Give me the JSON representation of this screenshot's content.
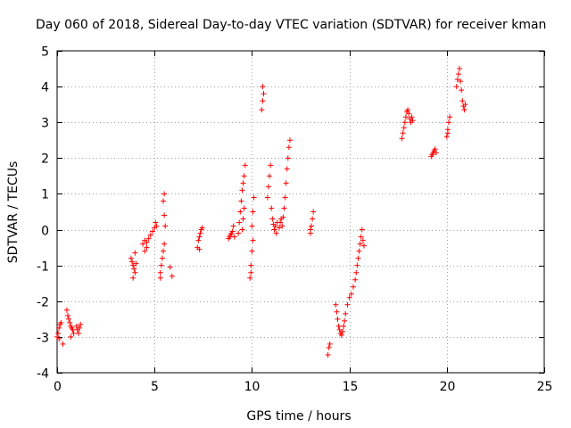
{
  "chart_data": {
    "type": "scatter",
    "title": "Day 060 of 2018, Sidereal Day-to-day VTEC variation (SDTVAR) for receiver kman",
    "xlabel": "GPS time / hours",
    "ylabel": "SDTVAR / TECUs",
    "xlim": [
      0,
      25
    ],
    "ylim": [
      -4,
      5
    ],
    "xticks": [
      0,
      5,
      10,
      15,
      20,
      25
    ],
    "xtick_labels": [
      "0",
      "5",
      "10",
      "15",
      "20",
      "25"
    ],
    "yticks": [
      -4,
      -3,
      -2,
      -1,
      0,
      1,
      2,
      3,
      4,
      5
    ],
    "ytick_labels": [
      "-4",
      "-3",
      "-2",
      "-1",
      "0",
      "1",
      "2",
      "3",
      "4",
      "5"
    ],
    "grid": true,
    "marker": "+",
    "series": [
      {
        "name": "SDTVAR",
        "color": "#ff0000",
        "points": [
          [
            0.0,
            -3.0
          ],
          [
            0.05,
            -2.9
          ],
          [
            0.1,
            -2.75
          ],
          [
            0.15,
            -2.65
          ],
          [
            0.2,
            -2.6
          ],
          [
            0.1,
            -3.05
          ],
          [
            0.3,
            -3.2
          ],
          [
            0.5,
            -2.25
          ],
          [
            0.55,
            -2.4
          ],
          [
            0.6,
            -2.5
          ],
          [
            0.65,
            -2.6
          ],
          [
            0.7,
            -2.7
          ],
          [
            0.75,
            -2.75
          ],
          [
            0.8,
            -2.8
          ],
          [
            0.85,
            -2.9
          ],
          [
            0.7,
            -3.0
          ],
          [
            1.0,
            -2.7
          ],
          [
            1.05,
            -2.8
          ],
          [
            1.1,
            -2.9
          ],
          [
            1.15,
            -2.75
          ],
          [
            1.2,
            -2.65
          ],
          [
            3.8,
            -0.8
          ],
          [
            3.85,
            -0.9
          ],
          [
            3.9,
            -1.0
          ],
          [
            3.95,
            -1.1
          ],
          [
            4.0,
            -1.2
          ],
          [
            3.9,
            -1.35
          ],
          [
            4.05,
            -0.95
          ],
          [
            4.0,
            -0.65
          ],
          [
            4.4,
            -0.4
          ],
          [
            4.5,
            -0.3
          ],
          [
            4.6,
            -0.35
          ],
          [
            4.7,
            -0.25
          ],
          [
            4.8,
            -0.15
          ],
          [
            4.9,
            -0.05
          ],
          [
            5.0,
            0.05
          ],
          [
            5.05,
            0.2
          ],
          [
            5.1,
            0.1
          ],
          [
            4.6,
            -0.5
          ],
          [
            4.5,
            -0.6
          ],
          [
            5.3,
            -1.2
          ],
          [
            5.35,
            -1.0
          ],
          [
            5.4,
            -0.8
          ],
          [
            5.45,
            -0.6
          ],
          [
            5.5,
            -0.4
          ],
          [
            5.55,
            0.1
          ],
          [
            5.5,
            0.4
          ],
          [
            5.45,
            0.8
          ],
          [
            5.5,
            1.0
          ],
          [
            5.3,
            -1.35
          ],
          [
            5.9,
            -1.3
          ],
          [
            5.8,
            -1.05
          ],
          [
            7.2,
            -0.5
          ],
          [
            7.25,
            -0.3
          ],
          [
            7.3,
            -0.2
          ],
          [
            7.35,
            -0.1
          ],
          [
            7.4,
            0.0
          ],
          [
            7.45,
            0.05
          ],
          [
            7.3,
            -0.55
          ],
          [
            8.8,
            -0.25
          ],
          [
            8.85,
            -0.2
          ],
          [
            8.9,
            -0.15
          ],
          [
            8.95,
            -0.1
          ],
          [
            9.0,
            -0.05
          ],
          [
            9.05,
            0.1
          ],
          [
            9.1,
            -0.2
          ],
          [
            9.3,
            -0.1
          ],
          [
            9.35,
            0.2
          ],
          [
            9.4,
            0.5
          ],
          [
            9.45,
            0.8
          ],
          [
            9.5,
            1.1
          ],
          [
            9.55,
            1.3
          ],
          [
            9.6,
            1.5
          ],
          [
            9.65,
            1.8
          ],
          [
            9.5,
            0.0
          ],
          [
            9.6,
            0.6
          ],
          [
            9.55,
            0.3
          ],
          [
            9.9,
            -1.35
          ],
          [
            9.95,
            -1.0
          ],
          [
            10.0,
            -0.6
          ],
          [
            10.05,
            -0.3
          ],
          [
            10.0,
            0.1
          ],
          [
            10.05,
            0.5
          ],
          [
            10.1,
            0.9
          ],
          [
            9.95,
            -1.2
          ],
          [
            10.5,
            3.35
          ],
          [
            10.55,
            3.6
          ],
          [
            10.6,
            3.8
          ],
          [
            10.55,
            4.0
          ],
          [
            10.8,
            0.9
          ],
          [
            10.85,
            1.2
          ],
          [
            10.9,
            1.5
          ],
          [
            10.95,
            1.8
          ],
          [
            11.0,
            0.6
          ],
          [
            11.05,
            0.3
          ],
          [
            11.1,
            0.15
          ],
          [
            11.15,
            0.0
          ],
          [
            11.2,
            0.1
          ],
          [
            11.25,
            -0.1
          ],
          [
            11.3,
            0.2
          ],
          [
            11.4,
            0.05
          ],
          [
            11.45,
            0.2
          ],
          [
            11.5,
            0.3
          ],
          [
            11.55,
            0.1
          ],
          [
            11.6,
            0.35
          ],
          [
            11.65,
            0.6
          ],
          [
            11.7,
            0.9
          ],
          [
            11.75,
            1.3
          ],
          [
            11.8,
            1.7
          ],
          [
            11.85,
            2.0
          ],
          [
            11.9,
            2.3
          ],
          [
            11.95,
            2.5
          ],
          [
            13.0,
            -0.1
          ],
          [
            13.05,
            0.1
          ],
          [
            13.1,
            0.3
          ],
          [
            13.15,
            0.5
          ],
          [
            13.0,
            0.0
          ],
          [
            13.9,
            -3.5
          ],
          [
            13.95,
            -3.3
          ],
          [
            14.0,
            -3.2
          ],
          [
            14.3,
            -2.1
          ],
          [
            14.35,
            -2.3
          ],
          [
            14.4,
            -2.5
          ],
          [
            14.45,
            -2.7
          ],
          [
            14.5,
            -2.8
          ],
          [
            14.55,
            -2.9
          ],
          [
            14.6,
            -2.95
          ],
          [
            14.65,
            -2.85
          ],
          [
            14.7,
            -2.7
          ],
          [
            14.75,
            -2.55
          ],
          [
            14.8,
            -2.35
          ],
          [
            14.9,
            -2.1
          ],
          [
            15.0,
            -1.9
          ],
          [
            15.1,
            -1.8
          ],
          [
            15.2,
            -1.6
          ],
          [
            15.3,
            -1.4
          ],
          [
            15.35,
            -1.2
          ],
          [
            15.4,
            -1.0
          ],
          [
            15.45,
            -0.8
          ],
          [
            15.5,
            -0.6
          ],
          [
            15.55,
            -0.4
          ],
          [
            15.6,
            -0.2
          ],
          [
            15.65,
            0.0
          ],
          [
            15.7,
            -0.3
          ],
          [
            15.75,
            -0.45
          ],
          [
            17.7,
            2.55
          ],
          [
            17.75,
            2.7
          ],
          [
            17.8,
            2.85
          ],
          [
            17.85,
            3.0
          ],
          [
            17.9,
            3.15
          ],
          [
            17.95,
            3.3
          ],
          [
            18.0,
            3.35
          ],
          [
            18.05,
            3.25
          ],
          [
            18.1,
            3.1
          ],
          [
            18.15,
            3.0
          ],
          [
            18.2,
            3.15
          ],
          [
            18.25,
            3.05
          ],
          [
            19.2,
            2.05
          ],
          [
            19.25,
            2.1
          ],
          [
            19.3,
            2.15
          ],
          [
            19.35,
            2.2
          ],
          [
            19.4,
            2.25
          ],
          [
            19.45,
            2.15
          ],
          [
            20.0,
            2.6
          ],
          [
            20.05,
            2.8
          ],
          [
            20.1,
            3.0
          ],
          [
            20.15,
            3.15
          ],
          [
            20.05,
            2.7
          ],
          [
            20.5,
            4.0
          ],
          [
            20.55,
            4.2
          ],
          [
            20.6,
            4.35
          ],
          [
            20.65,
            4.5
          ],
          [
            20.7,
            4.15
          ],
          [
            20.75,
            3.9
          ],
          [
            20.8,
            3.6
          ],
          [
            20.85,
            3.45
          ],
          [
            20.9,
            3.35
          ],
          [
            20.95,
            3.5
          ]
        ]
      }
    ]
  }
}
